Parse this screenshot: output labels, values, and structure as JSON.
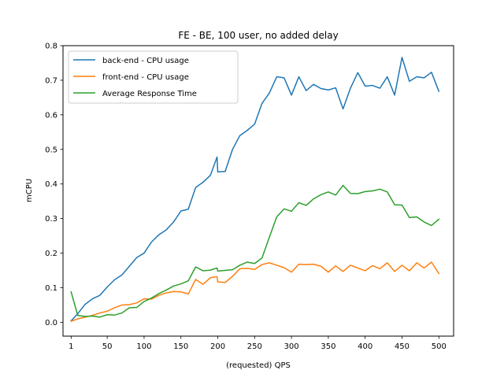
{
  "chart_data": {
    "type": "line",
    "title": "FE - BE, 100 user, no added delay",
    "xlabel": "(requested) QPS",
    "ylabel": "mCPU",
    "xlim": [
      -10,
      520
    ],
    "ylim": [
      -0.04,
      0.8
    ],
    "xticks": [
      1,
      50,
      100,
      150,
      200,
      250,
      300,
      350,
      400,
      450,
      500
    ],
    "xtick_labels": [
      "1",
      "50",
      "100",
      "150",
      "200",
      "250",
      "300",
      "350",
      "400",
      "450",
      "500"
    ],
    "yticks": [
      0.0,
      0.1,
      0.2,
      0.3,
      0.4,
      0.5,
      0.6,
      0.7,
      0.8
    ],
    "ytick_labels": [
      "0.0",
      "0.1",
      "0.2",
      "0.3",
      "0.4",
      "0.5",
      "0.6",
      "0.7",
      "0.8"
    ],
    "grid": false,
    "legend_position": "top-left",
    "x": [
      1,
      10,
      20,
      30,
      40,
      50,
      60,
      70,
      80,
      90,
      100,
      110,
      120,
      130,
      140,
      150,
      160,
      170,
      180,
      190,
      199,
      200,
      210,
      220,
      230,
      240,
      250,
      260,
      270,
      280,
      290,
      300,
      310,
      320,
      330,
      340,
      350,
      360,
      370,
      380,
      390,
      400,
      410,
      420,
      430,
      440,
      450,
      460,
      470,
      480,
      490,
      500
    ],
    "series": [
      {
        "name": "back-end - CPU usage",
        "color": "#1f77b4",
        "values": [
          0.004,
          0.025,
          0.052,
          0.068,
          0.078,
          0.102,
          0.123,
          0.137,
          0.162,
          0.187,
          0.2,
          0.232,
          0.253,
          0.267,
          0.29,
          0.322,
          0.327,
          0.39,
          0.405,
          0.425,
          0.478,
          0.435,
          0.436,
          0.5,
          0.54,
          0.555,
          0.573,
          0.633,
          0.663,
          0.71,
          0.707,
          0.657,
          0.71,
          0.67,
          0.688,
          0.676,
          0.672,
          0.678,
          0.617,
          0.677,
          0.722,
          0.683,
          0.685,
          0.677,
          0.71,
          0.657,
          0.766,
          0.697,
          0.71,
          0.707,
          0.723,
          0.668
        ]
      },
      {
        "name": "front-end - CPU usage",
        "color": "#ff7f0e",
        "values": [
          0.003,
          0.01,
          0.015,
          0.02,
          0.027,
          0.032,
          0.042,
          0.05,
          0.051,
          0.056,
          0.068,
          0.067,
          0.078,
          0.085,
          0.089,
          0.088,
          0.082,
          0.124,
          0.11,
          0.129,
          0.132,
          0.117,
          0.115,
          0.133,
          0.155,
          0.156,
          0.153,
          0.167,
          0.172,
          0.165,
          0.158,
          0.145,
          0.168,
          0.167,
          0.168,
          0.162,
          0.145,
          0.163,
          0.147,
          0.165,
          0.157,
          0.149,
          0.164,
          0.155,
          0.172,
          0.147,
          0.165,
          0.149,
          0.172,
          0.157,
          0.174,
          0.141
        ]
      },
      {
        "name": "Average Response Time",
        "color": "#2ca02c",
        "values": [
          0.088,
          0.02,
          0.017,
          0.018,
          0.015,
          0.022,
          0.021,
          0.027,
          0.042,
          0.043,
          0.06,
          0.07,
          0.083,
          0.093,
          0.105,
          0.111,
          0.12,
          0.16,
          0.149,
          0.151,
          0.157,
          0.148,
          0.15,
          0.152,
          0.165,
          0.174,
          0.17,
          0.186,
          0.246,
          0.305,
          0.328,
          0.321,
          0.346,
          0.338,
          0.357,
          0.369,
          0.377,
          0.368,
          0.396,
          0.373,
          0.372,
          0.378,
          0.38,
          0.385,
          0.377,
          0.34,
          0.339,
          0.303,
          0.305,
          0.29,
          0.28,
          0.298
        ]
      }
    ]
  }
}
